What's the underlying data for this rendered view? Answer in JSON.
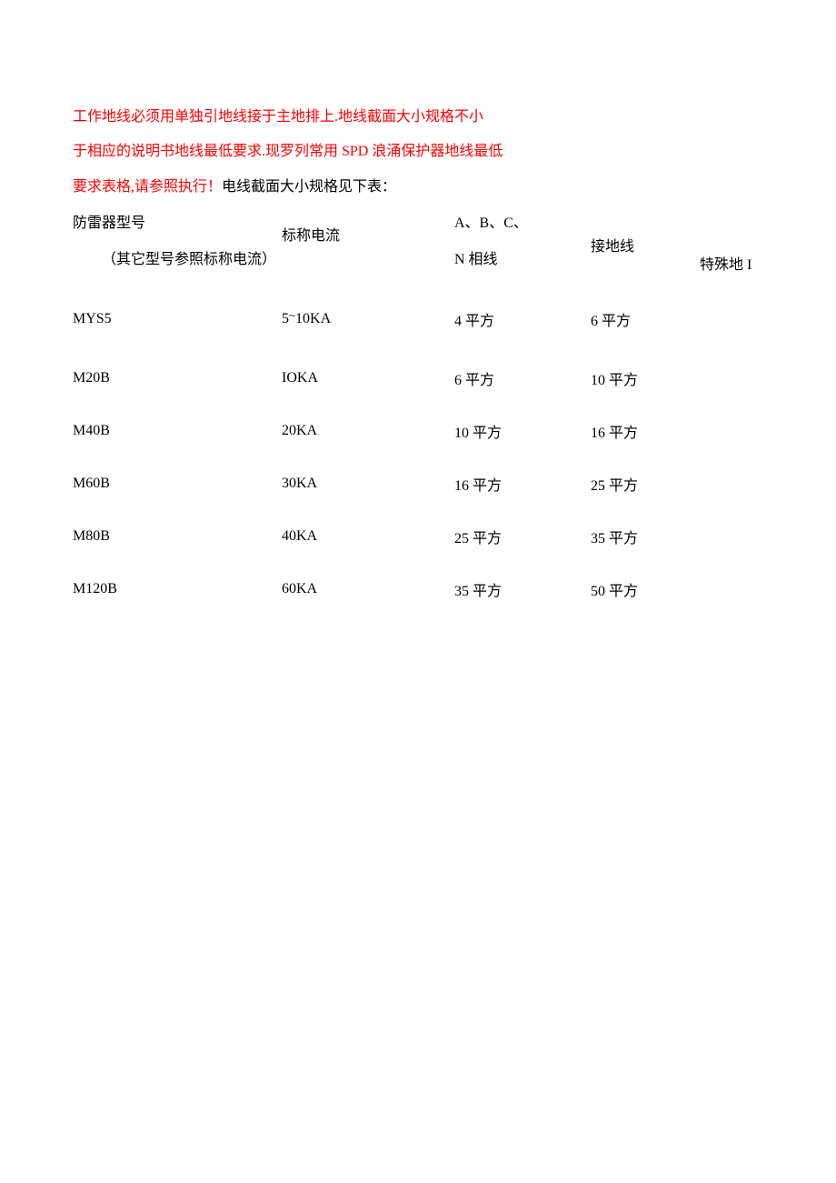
{
  "paragraph": {
    "line1_red": "工作地线必须用单独引地线接于主地排上.地线截面大小规格不小",
    "line2_red": "于相应的说明书地线最低要求.现罗列常用 SPD 浪涌保护器地线最低",
    "line3_red": "要求表格,请参照执行！",
    "line3_black": "电线截面大小规格见下表："
  },
  "table": {
    "headers": {
      "model_line1": "防雷器型号",
      "model_line2": "（其它型号参照标称电流）",
      "current": "标称电流",
      "phase_line1": "A、B、C、",
      "phase_line2": "N 相线",
      "ground": "接地线",
      "special": "特殊地 I"
    },
    "rows": [
      {
        "model": "MYS5",
        "current_prefix": "5",
        "current_super": "~",
        "current_suffix": "10KA",
        "phase": "4 平方",
        "ground": "6 平方",
        "special": ""
      },
      {
        "model": "M20B",
        "current": "IOKA",
        "phase": "6 平方",
        "ground": "10 平方",
        "special": ""
      },
      {
        "model": "M40B",
        "current": "20KA",
        "phase": "10 平方",
        "ground": "16 平方",
        "special": ""
      },
      {
        "model": "M60B",
        "current": "30KA",
        "phase": "16 平方",
        "ground": "25 平方",
        "special": ""
      },
      {
        "model": "M80B",
        "current": "40KA",
        "phase": "25 平方",
        "ground": "35 平方",
        "special": ""
      },
      {
        "model": "M120B",
        "current": "60KA",
        "phase": "35 平方",
        "ground": "50 平方",
        "special": ""
      }
    ]
  },
  "colors": {
    "red": "#ff0000",
    "black": "#000000",
    "background": "#ffffff"
  },
  "typography": {
    "body_fontsize": 16,
    "font_family": "SimSun"
  }
}
